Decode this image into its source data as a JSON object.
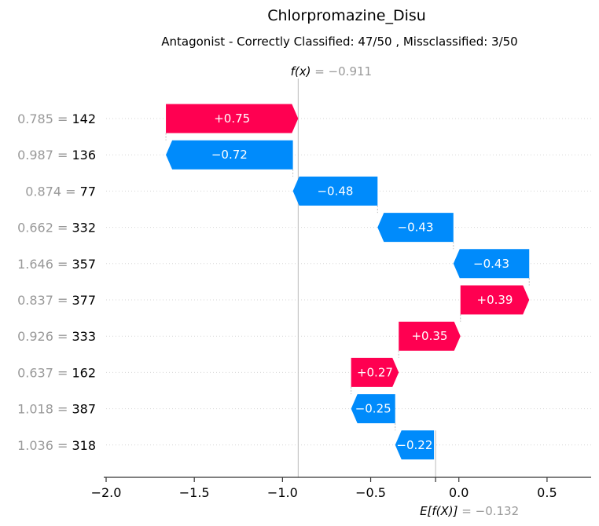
{
  "title": "Chlorpromazine_Disu",
  "subtitle": "Antagonist - Correctly Classified: 47/50 , Missclassified: 3/50",
  "colors": {
    "positive": "#ff0051",
    "negative": "#008bfb",
    "muted": "#999999"
  },
  "chart_data": {
    "type": "bar",
    "subtype": "shap-waterfall",
    "fx": {
      "label": "f(x)",
      "value_text": "= −0.911",
      "value": -0.911
    },
    "ex": {
      "label": "E[f(X)]",
      "value_text": "= −0.132",
      "value": -0.132
    },
    "xlim": [
      -2.0,
      0.75
    ],
    "xticks": [
      -2.0,
      -1.5,
      -1.0,
      -0.5,
      0.0,
      0.5
    ],
    "xtick_labels": [
      "−2.0",
      "−1.5",
      "−1.0",
      "−0.5",
      "0.0",
      "0.5"
    ],
    "features": [
      {
        "value": "0.785",
        "name": "142",
        "shap": 0.75,
        "label": "+0.75"
      },
      {
        "value": "0.987",
        "name": "136",
        "shap": -0.72,
        "label": "−0.72"
      },
      {
        "value": "0.874",
        "name": "77",
        "shap": -0.48,
        "label": "−0.48"
      },
      {
        "value": "0.662",
        "name": "332",
        "shap": -0.43,
        "label": "−0.43"
      },
      {
        "value": "1.646",
        "name": "357",
        "shap": -0.43,
        "label": "−0.43"
      },
      {
        "value": "0.837",
        "name": "377",
        "shap": 0.39,
        "label": "+0.39"
      },
      {
        "value": "0.926",
        "name": "333",
        "shap": 0.35,
        "label": "+0.35"
      },
      {
        "value": "0.637",
        "name": "162",
        "shap": 0.27,
        "label": "+0.27"
      },
      {
        "value": "1.018",
        "name": "387",
        "shap": -0.25,
        "label": "−0.25"
      },
      {
        "value": "1.036",
        "name": "318",
        "shap": -0.22,
        "label": "−0.22"
      }
    ]
  }
}
